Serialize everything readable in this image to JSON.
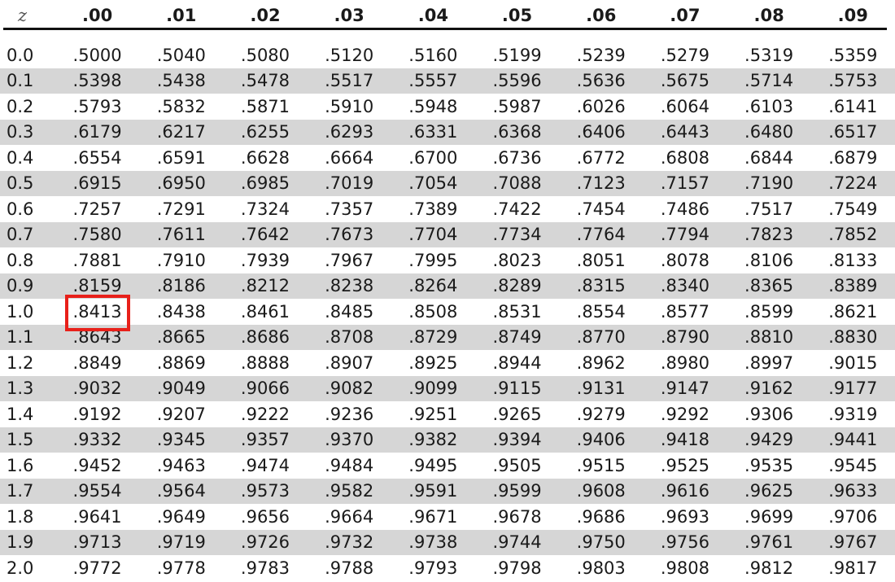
{
  "header": {
    "z_label": "z",
    "columns": [
      ".00",
      ".01",
      ".02",
      ".03",
      ".04",
      ".05",
      ".06",
      ".07",
      ".08",
      ".09"
    ]
  },
  "highlight": {
    "row": "1.0",
    "column": ".00",
    "value": ".8413",
    "color": "#e8201a"
  },
  "rows": [
    {
      "z": "0.0",
      "values": [
        ".5000",
        ".5040",
        ".5080",
        ".5120",
        ".5160",
        ".5199",
        ".5239",
        ".5279",
        ".5319",
        ".5359"
      ]
    },
    {
      "z": "0.1",
      "values": [
        ".5398",
        ".5438",
        ".5478",
        ".5517",
        ".5557",
        ".5596",
        ".5636",
        ".5675",
        ".5714",
        ".5753"
      ]
    },
    {
      "z": "0.2",
      "values": [
        ".5793",
        ".5832",
        ".5871",
        ".5910",
        ".5948",
        ".5987",
        ".6026",
        ".6064",
        ".6103",
        ".6141"
      ]
    },
    {
      "z": "0.3",
      "values": [
        ".6179",
        ".6217",
        ".6255",
        ".6293",
        ".6331",
        ".6368",
        ".6406",
        ".6443",
        ".6480",
        ".6517"
      ]
    },
    {
      "z": "0.4",
      "values": [
        ".6554",
        ".6591",
        ".6628",
        ".6664",
        ".6700",
        ".6736",
        ".6772",
        ".6808",
        ".6844",
        ".6879"
      ]
    },
    {
      "z": "0.5",
      "values": [
        ".6915",
        ".6950",
        ".6985",
        ".7019",
        ".7054",
        ".7088",
        ".7123",
        ".7157",
        ".7190",
        ".7224"
      ]
    },
    {
      "z": "0.6",
      "values": [
        ".7257",
        ".7291",
        ".7324",
        ".7357",
        ".7389",
        ".7422",
        ".7454",
        ".7486",
        ".7517",
        ".7549"
      ]
    },
    {
      "z": "0.7",
      "values": [
        ".7580",
        ".7611",
        ".7642",
        ".7673",
        ".7704",
        ".7734",
        ".7764",
        ".7794",
        ".7823",
        ".7852"
      ]
    },
    {
      "z": "0.8",
      "values": [
        ".7881",
        ".7910",
        ".7939",
        ".7967",
        ".7995",
        ".8023",
        ".8051",
        ".8078",
        ".8106",
        ".8133"
      ]
    },
    {
      "z": "0.9",
      "values": [
        ".8159",
        ".8186",
        ".8212",
        ".8238",
        ".8264",
        ".8289",
        ".8315",
        ".8340",
        ".8365",
        ".8389"
      ]
    },
    {
      "z": "1.0",
      "values": [
        ".8413",
        ".8438",
        ".8461",
        ".8485",
        ".8508",
        ".8531",
        ".8554",
        ".8577",
        ".8599",
        ".8621"
      ]
    },
    {
      "z": "1.1",
      "values": [
        ".8643",
        ".8665",
        ".8686",
        ".8708",
        ".8729",
        ".8749",
        ".8770",
        ".8790",
        ".8810",
        ".8830"
      ]
    },
    {
      "z": "1.2",
      "values": [
        ".8849",
        ".8869",
        ".8888",
        ".8907",
        ".8925",
        ".8944",
        ".8962",
        ".8980",
        ".8997",
        ".9015"
      ]
    },
    {
      "z": "1.3",
      "values": [
        ".9032",
        ".9049",
        ".9066",
        ".9082",
        ".9099",
        ".9115",
        ".9131",
        ".9147",
        ".9162",
        ".9177"
      ]
    },
    {
      "z": "1.4",
      "values": [
        ".9192",
        ".9207",
        ".9222",
        ".9236",
        ".9251",
        ".9265",
        ".9279",
        ".9292",
        ".9306",
        ".9319"
      ]
    },
    {
      "z": "1.5",
      "values": [
        ".9332",
        ".9345",
        ".9357",
        ".9370",
        ".9382",
        ".9394",
        ".9406",
        ".9418",
        ".9429",
        ".9441"
      ]
    },
    {
      "z": "1.6",
      "values": [
        ".9452",
        ".9463",
        ".9474",
        ".9484",
        ".9495",
        ".9505",
        ".9515",
        ".9525",
        ".9535",
        ".9545"
      ]
    },
    {
      "z": "1.7",
      "values": [
        ".9554",
        ".9564",
        ".9573",
        ".9582",
        ".9591",
        ".9599",
        ".9608",
        ".9616",
        ".9625",
        ".9633"
      ]
    },
    {
      "z": "1.8",
      "values": [
        ".9641",
        ".9649",
        ".9656",
        ".9664",
        ".9671",
        ".9678",
        ".9686",
        ".9693",
        ".9699",
        ".9706"
      ]
    },
    {
      "z": "1.9",
      "values": [
        ".9713",
        ".9719",
        ".9726",
        ".9732",
        ".9738",
        ".9744",
        ".9750",
        ".9756",
        ".9761",
        ".9767"
      ]
    },
    {
      "z": "2.0",
      "values": [
        ".9772",
        ".9778",
        ".9783",
        ".9788",
        ".9793",
        ".9798",
        ".9803",
        ".9808",
        ".9812",
        ".9817"
      ]
    }
  ]
}
